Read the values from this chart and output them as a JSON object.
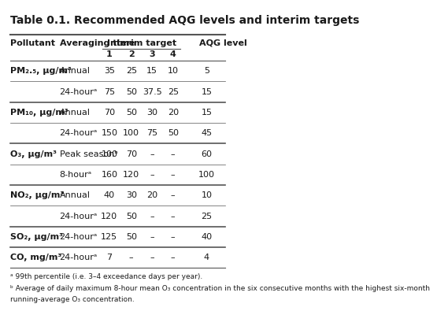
{
  "title": "Table 0.1. Recommended AQG levels and interim targets",
  "headers": {
    "col1": "Pollutant",
    "col2": "Averaging time",
    "interim": "Interim target",
    "it1": "1",
    "it2": "2",
    "it3": "3",
    "it4": "4",
    "aqg": "AQG level"
  },
  "rows": [
    {
      "pollutant": "PM₂.₅, μg/m³",
      "averaging_time": "Annual",
      "it1": "35",
      "it2": "25",
      "it3": "15",
      "it4": "10",
      "aqg": "5",
      "group_start": true
    },
    {
      "pollutant": "",
      "averaging_time": "24‑hourᵃ",
      "it1": "75",
      "it2": "50",
      "it3": "37.5",
      "it4": "25",
      "aqg": "15",
      "group_start": false
    },
    {
      "pollutant": "PM₁₀, μg/m³",
      "averaging_time": "Annual",
      "it1": "70",
      "it2": "50",
      "it3": "30",
      "it4": "20",
      "aqg": "15",
      "group_start": true
    },
    {
      "pollutant": "",
      "averaging_time": "24‑hourᵃ",
      "it1": "150",
      "it2": "100",
      "it3": "75",
      "it4": "50",
      "aqg": "45",
      "group_start": false
    },
    {
      "pollutant": "O₃, μg/m³",
      "averaging_time": "Peak seasonᵇ",
      "it1": "100",
      "it2": "70",
      "it3": "–",
      "it4": "–",
      "aqg": "60",
      "group_start": true
    },
    {
      "pollutant": "",
      "averaging_time": "8‑hourᵃ",
      "it1": "160",
      "it2": "120",
      "it3": "–",
      "it4": "–",
      "aqg": "100",
      "group_start": false
    },
    {
      "pollutant": "NO₂, μg/m³",
      "averaging_time": "Annual",
      "it1": "40",
      "it2": "30",
      "it3": "20",
      "it4": "–",
      "aqg": "10",
      "group_start": true
    },
    {
      "pollutant": "",
      "averaging_time": "24‑hourᵃ",
      "it1": "120",
      "it2": "50",
      "it3": "–",
      "it4": "–",
      "aqg": "25",
      "group_start": false
    },
    {
      "pollutant": "SO₂, μg/m³",
      "averaging_time": "24‑hourᵃ",
      "it1": "125",
      "it2": "50",
      "it3": "–",
      "it4": "–",
      "aqg": "40",
      "group_start": true
    },
    {
      "pollutant": "CO, mg/m³",
      "averaging_time": "24‑hourᵃ",
      "it1": "7",
      "it2": "–",
      "it3": "–",
      "it4": "–",
      "aqg": "4",
      "group_start": true
    }
  ],
  "footnotes": [
    "ᵃ 99th percentile (i.e. 3–4 exceedance days per year).",
    "ᵇ Average of daily maximum 8-hour mean O₃ concentration in the six consecutive months with the highest six-month",
    "running-average O₃ concentration."
  ],
  "bg_color": "#ffffff",
  "text_color": "#1a1a1a",
  "line_color": "#555555",
  "title_fontsize": 10.0,
  "header_fontsize": 8.0,
  "data_fontsize": 8.0,
  "footnote_fontsize": 6.5,
  "col_x": {
    "pollutant": 0.01,
    "avg_time": 0.235,
    "it1": 0.435,
    "it2": 0.535,
    "it3": 0.63,
    "it4": 0.725,
    "aqg": 0.865
  }
}
